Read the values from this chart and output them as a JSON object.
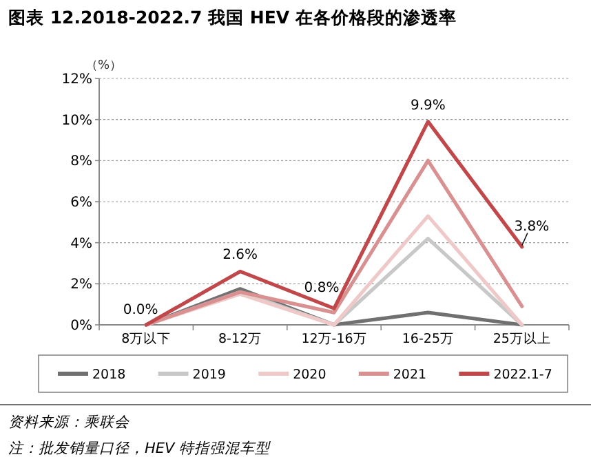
{
  "chart_data": {
    "type": "line",
    "title": "图表 12.2018-2022.7 我国 HEV 在各价格段的渗透率",
    "ylabel": "（%）",
    "categories": [
      "8万以下",
      "8-12万",
      "12万-16万",
      "16-25万",
      "25万以上"
    ],
    "series": [
      {
        "name": "2018",
        "color": "#707070",
        "values": [
          0,
          1.75,
          0,
          0.6,
          0
        ]
      },
      {
        "name": "2019",
        "color": "#c8c8c8",
        "values": [
          0,
          1.6,
          0,
          4.2,
          0
        ]
      },
      {
        "name": "2020",
        "color": "#efc8c8",
        "values": [
          0,
          1.5,
          0,
          5.3,
          0
        ]
      },
      {
        "name": "2021",
        "color": "#d99090",
        "values": [
          0,
          1.6,
          0.6,
          8.0,
          0.9
        ]
      },
      {
        "name": "2022.1-7",
        "color": "#c0474a",
        "values": [
          0.0,
          2.6,
          0.8,
          9.9,
          3.8
        ],
        "value_labels": [
          "0.0%",
          "2.6%",
          "0.8%",
          "9.9%",
          "3.8%"
        ]
      }
    ],
    "ylim": [
      0,
      12
    ],
    "yticks": [
      {
        "value": 0,
        "label": "0%"
      },
      {
        "value": 2,
        "label": "2%"
      },
      {
        "value": 4,
        "label": "4%"
      },
      {
        "value": 6,
        "label": "6%"
      },
      {
        "value": 8,
        "label": "8%"
      },
      {
        "value": 10,
        "label": "10%"
      },
      {
        "value": 12,
        "label": "12%"
      }
    ],
    "grid": "y",
    "legend": "bottom",
    "marker": "none",
    "line_style": "solid",
    "annotations": [
      "资料来源：乘联会",
      "注：批发销量口径，HEV 特指强混车型"
    ]
  }
}
